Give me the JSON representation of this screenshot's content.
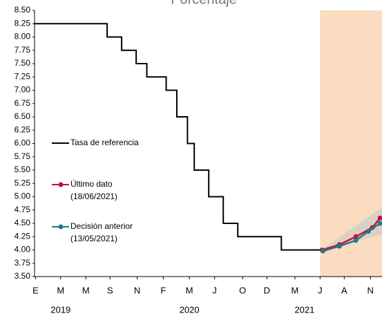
{
  "chart_data": {
    "type": "line",
    "title": "Porcentaje",
    "xlim": [
      -0.1,
      35.8
    ],
    "ylim": [
      3.5,
      8.5
    ],
    "yticks": [
      {
        "value": 3.5,
        "label": "3.50"
      },
      {
        "value": 3.75,
        "label": "3.75"
      },
      {
        "value": 4,
        "label": "4.00"
      },
      {
        "value": 4.25,
        "label": "4.25"
      },
      {
        "value": 4.5,
        "label": "4.50"
      },
      {
        "value": 4.75,
        "label": "4.75"
      },
      {
        "value": 5,
        "label": "5.00"
      },
      {
        "value": 5.25,
        "label": "5.25"
      },
      {
        "value": 5.5,
        "label": "5.50"
      },
      {
        "value": 5.75,
        "label": "5.75"
      },
      {
        "value": 6,
        "label": "6.00"
      },
      {
        "value": 6.25,
        "label": "6.25"
      },
      {
        "value": 6.5,
        "label": "6.50"
      },
      {
        "value": 6.75,
        "label": "6.75"
      },
      {
        "value": 7,
        "label": "7.00"
      },
      {
        "value": 7.25,
        "label": "7.25"
      },
      {
        "value": 7.5,
        "label": "7.50"
      },
      {
        "value": 7.75,
        "label": "7.75"
      },
      {
        "value": 8,
        "label": "8.00"
      },
      {
        "value": 8.25,
        "label": "8.25"
      },
      {
        "value": 8.5,
        "label": "8.50"
      }
    ],
    "xticks": [
      {
        "value": 0,
        "label": "E"
      },
      {
        "value": 2.6,
        "label": "M"
      },
      {
        "value": 5.2,
        "label": "M"
      },
      {
        "value": 7.7,
        "label": "S"
      },
      {
        "value": 10.5,
        "label": "N"
      },
      {
        "value": 13.2,
        "label": "F"
      },
      {
        "value": 15.9,
        "label": "M"
      },
      {
        "value": 18.5,
        "label": "J"
      },
      {
        "value": 21.4,
        "label": "O"
      },
      {
        "value": 23.9,
        "label": "D"
      },
      {
        "value": 26.8,
        "label": "M"
      },
      {
        "value": 29.4,
        "label": "J"
      },
      {
        "value": 31.9,
        "label": "A"
      },
      {
        "value": 34.6,
        "label": "N"
      }
    ],
    "year_labels": [
      {
        "label": "2019",
        "x": 2.6
      },
      {
        "label": "2020",
        "x": 15.9
      },
      {
        "label": "2021",
        "x": 27.8
      }
    ],
    "shaded_region": {
      "x": [
        29.4,
        35.8
      ],
      "color": "#fbdcc0"
    },
    "series": [
      {
        "name": "Tasa de referencia",
        "color": "#000000",
        "step": true,
        "x": [
          -0.1,
          7.4,
          8.9,
          10.4,
          11.5,
          13.5,
          14.6,
          15.7,
          16.4,
          17.9,
          19.4,
          20.9,
          25.4,
          29.4
        ],
        "values": [
          8.25,
          8.0,
          7.75,
          7.5,
          7.25,
          7.0,
          6.5,
          6.0,
          5.5,
          5.0,
          4.5,
          4.25,
          4.0,
          4.0
        ]
      },
      {
        "name": "Último dato",
        "note": "(18/06/2021)",
        "color": "#c0143c",
        "markers": true,
        "x": [
          29.6,
          31.4,
          33.1,
          34.8,
          35.6
        ],
        "values": [
          4.0,
          4.1,
          4.25,
          4.42,
          4.6
        ]
      },
      {
        "name": "Decisión anterior",
        "note": "(13/05/2021)",
        "color": "#1a7a8c",
        "markers": true,
        "x": [
          29.7,
          31.4,
          33.1,
          34.4,
          35.6
        ],
        "values": [
          3.98,
          4.07,
          4.18,
          4.35,
          4.5
        ]
      }
    ]
  }
}
